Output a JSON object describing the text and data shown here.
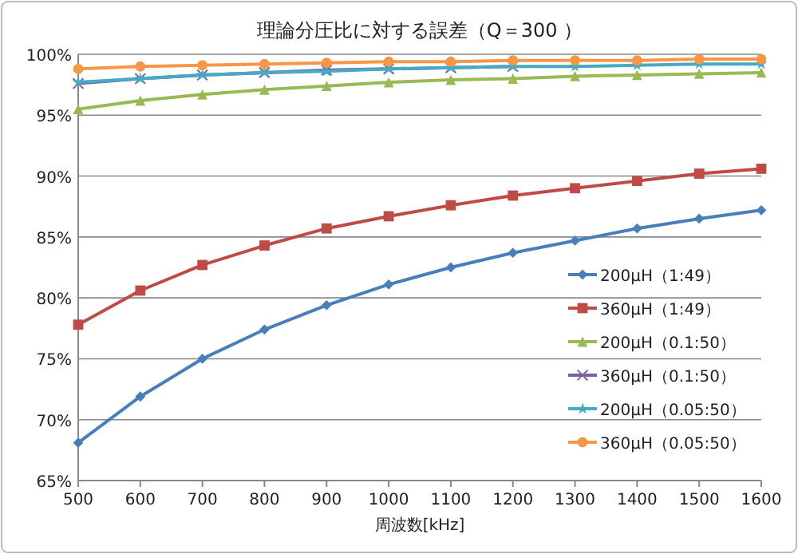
{
  "chart_data": {
    "type": "line",
    "title": "理論分圧比に対する誤差（Q＝300 ）",
    "xlabel": "周波数[kHz]",
    "x": [
      500,
      600,
      700,
      800,
      900,
      1000,
      1100,
      1200,
      1300,
      1400,
      1500,
      1600
    ],
    "xlim": [
      500,
      1600
    ],
    "xticks": [
      500,
      600,
      700,
      800,
      900,
      1000,
      1100,
      1200,
      1300,
      1400,
      1500,
      1600
    ],
    "ylim": [
      65,
      100
    ],
    "yticks": [
      {
        "value": 65,
        "label": "65%"
      },
      {
        "value": 70,
        "label": "70%"
      },
      {
        "value": 75,
        "label": "75%"
      },
      {
        "value": 80,
        "label": "80%"
      },
      {
        "value": 85,
        "label": "85%"
      },
      {
        "value": 90,
        "label": "90%"
      },
      {
        "value": 95,
        "label": "95%"
      },
      {
        "value": 100,
        "label": "100%"
      }
    ],
    "grid": "y",
    "legend": "right",
    "series": [
      {
        "name": "200μH（1:49）",
        "color": "#4a7ebb",
        "marker": "diamond",
        "values": [
          68.1,
          71.9,
          75.0,
          77.4,
          79.4,
          81.1,
          82.5,
          83.7,
          84.7,
          85.7,
          86.5,
          87.2
        ]
      },
      {
        "name": "360μH（1:49）",
        "color": "#be4b48",
        "marker": "square",
        "values": [
          77.8,
          80.6,
          82.7,
          84.3,
          85.7,
          86.7,
          87.6,
          88.4,
          89.0,
          89.6,
          90.2,
          90.6
        ]
      },
      {
        "name": "200μH（0.1:50）",
        "color": "#98b954",
        "marker": "triangle",
        "values": [
          95.5,
          96.2,
          96.7,
          97.1,
          97.4,
          97.7,
          97.9,
          98.0,
          98.2,
          98.3,
          98.4,
          98.5
        ]
      },
      {
        "name": "360μH（0.1:50）",
        "color": "#7d60a0",
        "marker": "cross",
        "values": [
          97.6,
          98.0,
          98.3,
          98.5,
          98.7,
          98.8,
          98.9,
          99.0,
          null,
          null,
          null,
          null
        ]
      },
      {
        "name": "200μH（0.05:50）",
        "color": "#46aac5",
        "marker": "star",
        "values": [
          97.7,
          98.0,
          98.3,
          98.5,
          98.6,
          98.8,
          98.9,
          99.0,
          99.0,
          99.1,
          99.2,
          99.2
        ]
      },
      {
        "name": "360μH（0.05:50）",
        "color": "#f79646",
        "marker": "circle",
        "values": [
          98.8,
          99.0,
          99.1,
          99.2,
          99.3,
          99.4,
          99.4,
          99.5,
          99.5,
          99.5,
          99.6,
          99.6
        ]
      }
    ]
  }
}
